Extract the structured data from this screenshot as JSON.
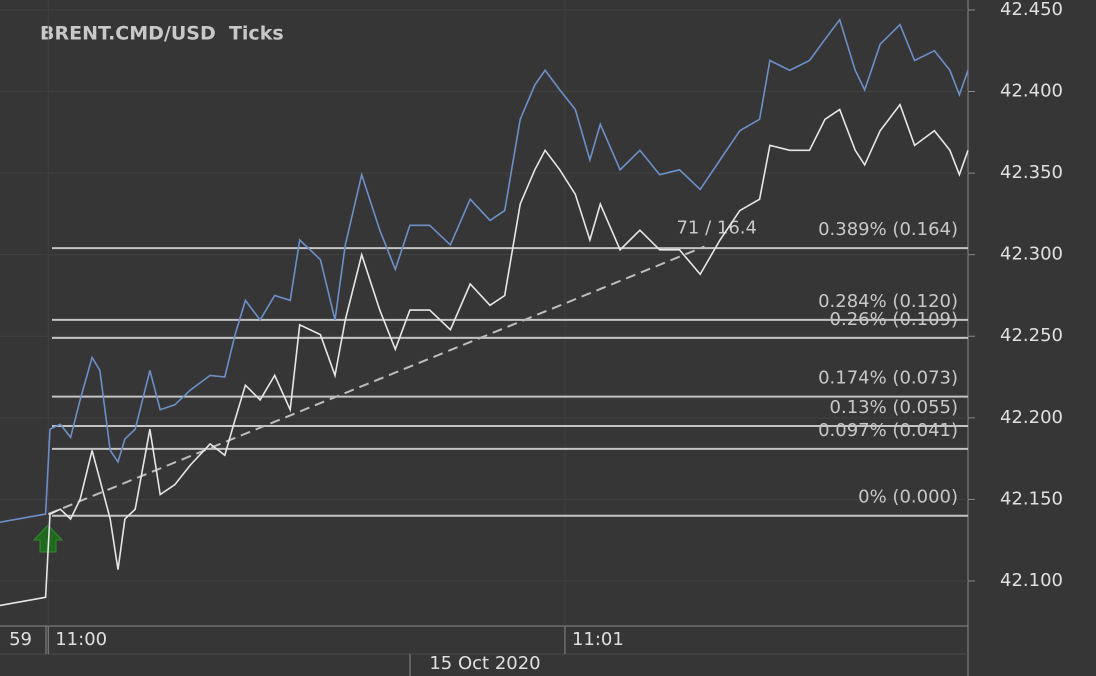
{
  "chart_data": {
    "type": "line",
    "title": "BRENT.CMD/USD  Ticks",
    "x_partial_label": "59",
    "date_label": "15 Oct 2020",
    "x": [
      -5.6,
      -0.3,
      0.2,
      1.4,
      2.6,
      3.7,
      5.1,
      6.0,
      7.2,
      8.1,
      8.9,
      10.1,
      11.8,
      13.0,
      14.7,
      16.5,
      18.8,
      20.5,
      21.7,
      22.9,
      24.6,
      26.3,
      28.1,
      29.2,
      31.6,
      33.3,
      34.5,
      36.4,
      38.5,
      40.3,
      42.0,
      44.3,
      46.7,
      49.0,
      51.3,
      53.0,
      54.8,
      56.5,
      57.7,
      59.4,
      61.2,
      62.9,
      64.1,
      66.4,
      68.7,
      71.0,
      73.3,
      75.7,
      78.0,
      80.3,
      82.6,
      83.8,
      86.1,
      88.4,
      90.2,
      91.9,
      93.7,
      94.8,
      96.6,
      98.9,
      100.6,
      102.9,
      104.7,
      105.8,
      106.8
    ],
    "series": [
      {
        "color": "#6d8fc8",
        "values": [
          42.136,
          42.141,
          42.193,
          42.196,
          42.188,
          42.211,
          42.237,
          42.229,
          42.18,
          42.173,
          42.187,
          42.193,
          42.229,
          42.205,
          42.208,
          42.217,
          42.226,
          42.225,
          42.251,
          42.272,
          42.26,
          42.275,
          42.272,
          42.309,
          42.297,
          42.26,
          42.306,
          42.349,
          42.315,
          42.291,
          42.318,
          42.318,
          42.306,
          42.334,
          42.321,
          42.327,
          42.383,
          42.404,
          42.413,
          42.401,
          42.389,
          42.358,
          42.38,
          42.352,
          42.364,
          42.349,
          42.352,
          42.34,
          42.358,
          42.376,
          42.383,
          42.419,
          42.413,
          42.419,
          42.432,
          42.444,
          42.413,
          42.401,
          42.429,
          42.441,
          42.419,
          42.425,
          42.413,
          42.398,
          42.413
        ]
      },
      {
        "color": "#e6e6e6",
        "values": [
          42.085,
          42.09,
          42.141,
          42.144,
          42.138,
          42.15,
          42.18,
          42.162,
          42.138,
          42.107,
          42.138,
          42.144,
          42.193,
          42.153,
          42.159,
          42.171,
          42.184,
          42.177,
          42.199,
          42.22,
          42.211,
          42.226,
          42.205,
          42.257,
          42.251,
          42.226,
          42.26,
          42.3,
          42.266,
          42.242,
          42.266,
          42.266,
          42.254,
          42.282,
          42.269,
          42.275,
          42.331,
          42.352,
          42.364,
          42.352,
          42.337,
          42.309,
          42.331,
          42.303,
          42.315,
          42.303,
          42.303,
          42.288,
          42.309,
          42.327,
          42.334,
          42.367,
          42.364,
          42.364,
          42.383,
          42.389,
          42.364,
          42.355,
          42.376,
          42.392,
          42.367,
          42.376,
          42.364,
          42.349,
          42.364
        ]
      }
    ],
    "levels": [
      {
        "value": 42.14,
        "label": "0% (0.000)"
      },
      {
        "value": 42.181,
        "label": "0.097% (0.041)"
      },
      {
        "value": 42.195,
        "label": "0.13% (0.055)"
      },
      {
        "value": 42.213,
        "label": "0.174% (0.073)"
      },
      {
        "value": 42.249,
        "label": "0.26% (0.109)"
      },
      {
        "value": 42.26,
        "label": "0.284% (0.120)"
      },
      {
        "value": 42.304,
        "label": "0.389% (0.164)"
      }
    ],
    "trendline": {
      "label": "71 / 16.4",
      "x": [
        0,
        76.2
      ],
      "y": [
        42.141,
        42.305
      ]
    },
    "xlim": [
      -5.6,
      106.8
    ],
    "xticks": [
      {
        "value": 0,
        "label": "11:00"
      },
      {
        "value": 60,
        "label": "11:01"
      }
    ],
    "ylim": [
      42.0724,
      42.4561
    ],
    "yticks": [
      {
        "value": 42.1,
        "label": "42.100"
      },
      {
        "value": 42.15,
        "label": "42.150"
      },
      {
        "value": 42.2,
        "label": "42.200"
      },
      {
        "value": 42.25,
        "label": "42.250"
      },
      {
        "value": 42.3,
        "label": "42.300"
      },
      {
        "value": 42.35,
        "label": "42.350"
      },
      {
        "value": 42.4,
        "label": "42.400"
      },
      {
        "value": 42.45,
        "label": "42.450"
      }
    ],
    "grid": true
  }
}
